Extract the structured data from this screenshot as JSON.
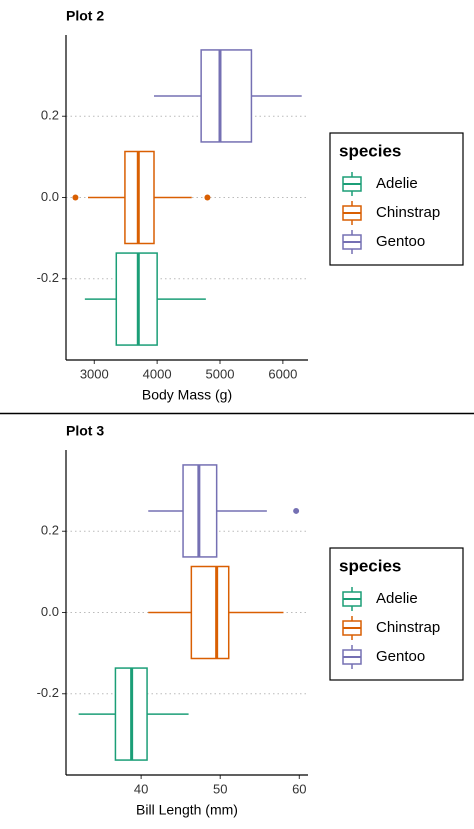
{
  "chart_data": [
    {
      "type": "boxplot",
      "title": "Plot 2",
      "x_label": "Body Mass (g)",
      "xlim": [
        2550,
        6400
      ],
      "xticks": [
        3000,
        4000,
        5000,
        6000
      ],
      "ylim": [
        -0.4,
        0.4
      ],
      "yticks": [
        0.2,
        0.0,
        -0.2
      ],
      "grid": true,
      "legend_title": "species",
      "legend": "right",
      "series": [
        {
          "name": "Adelie",
          "color": "#1b9e77",
          "y": -0.25,
          "whisker_low": 2850,
          "q1": 3350,
          "median": 3700,
          "q3": 4000,
          "whisker_high": 4775,
          "outliers": []
        },
        {
          "name": "Chinstrap",
          "color": "#d95f02",
          "y": 0.0,
          "whisker_low": 2900,
          "q1": 3487.5,
          "median": 3700,
          "q3": 3950,
          "whisker_high": 4550,
          "outliers": [
            2700,
            4800
          ]
        },
        {
          "name": "Gentoo",
          "color": "#7570b3",
          "y": 0.25,
          "whisker_low": 3950,
          "q1": 4700,
          "median": 5000,
          "q3": 5500,
          "whisker_high": 6300,
          "outliers": []
        }
      ]
    },
    {
      "type": "boxplot",
      "title": "Plot 3",
      "x_label": "Bill Length (mm)",
      "xlim": [
        30.5,
        61.1
      ],
      "xticks": [
        40,
        50,
        60
      ],
      "ylim": [
        -0.4,
        0.4
      ],
      "yticks": [
        0.2,
        0.0,
        -0.2
      ],
      "grid": true,
      "legend_title": "species",
      "legend": "right",
      "series": [
        {
          "name": "Adelie",
          "color": "#1b9e77",
          "y": -0.25,
          "whisker_low": 32.1,
          "q1": 36.75,
          "median": 38.8,
          "q3": 40.75,
          "whisker_high": 46.0,
          "outliers": []
        },
        {
          "name": "Chinstrap",
          "color": "#d95f02",
          "y": 0.0,
          "whisker_low": 40.9,
          "q1": 46.35,
          "median": 49.55,
          "q3": 51.075,
          "whisker_high": 58.0,
          "outliers": []
        },
        {
          "name": "Gentoo",
          "color": "#7570b3",
          "y": 0.25,
          "whisker_low": 40.9,
          "q1": 45.3,
          "median": 47.3,
          "q3": 49.55,
          "whisker_high": 55.9,
          "outliers": [
            59.6
          ]
        }
      ]
    }
  ]
}
